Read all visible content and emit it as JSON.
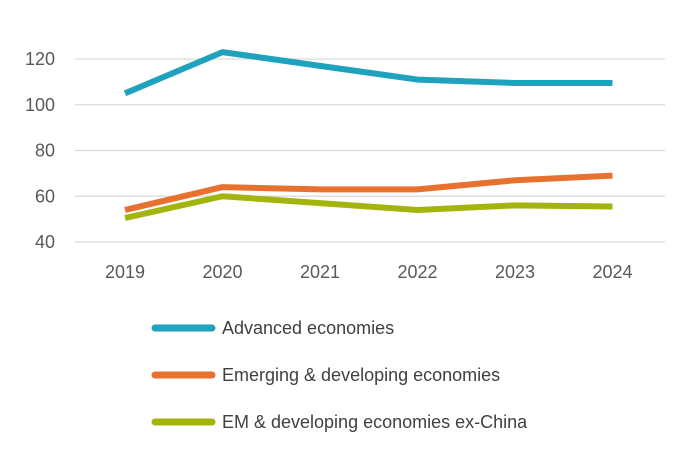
{
  "chart_data": {
    "type": "line",
    "title": "",
    "xlabel": "",
    "ylabel": "",
    "categories": [
      "2019",
      "2020",
      "2021",
      "2022",
      "2023",
      "2024"
    ],
    "ylim": [
      40,
      130
    ],
    "yticks": [
      40,
      60,
      80,
      100,
      120
    ],
    "grid": true,
    "legend_position": "bottom-left",
    "series": [
      {
        "name": "Advanced economies",
        "color": "#1FA2BD",
        "values": [
          105,
          123,
          117,
          111,
          109.5,
          109.5
        ]
      },
      {
        "name": "Emerging & developing economies",
        "color": "#E8712F",
        "values": [
          54,
          64,
          63,
          63,
          67,
          69
        ]
      },
      {
        "name": "EM & developing economies ex-China",
        "color": "#A3B40C",
        "values": [
          50.5,
          60,
          57,
          54,
          56,
          55.5
        ]
      }
    ]
  }
}
